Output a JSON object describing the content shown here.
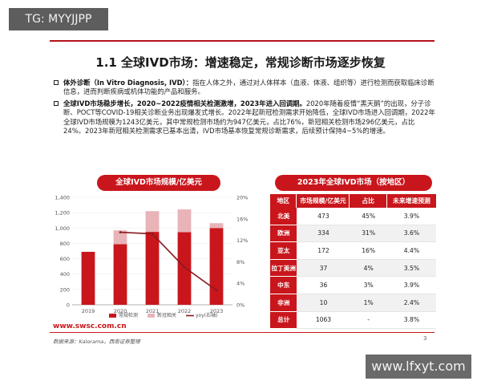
{
  "watermarks": {
    "top_left": "TG: MYYJJPP",
    "bottom_right": "www.lfxyt.com"
  },
  "header": {
    "title": "1.1 全球IVD市场：增速稳定，常规诊断市场逐步恢复"
  },
  "bullets": [
    {
      "lead": "体外诊断（In Vitro Diagnosis, IVD）：",
      "text": "指在人体之外，通过对人体样本（血液、体液、组织等）进行检测而获取临床诊断信息，进而判断疾病或机体功能的产品和服务。"
    },
    {
      "lead": "全球IVD市场稳步增长，2020~2022疫情相关检测激增，2023年进入回调期。",
      "text": "2020年随着疫情“黑天鹅”的出现，分子诊断、POCT等COVID-19相关诊断业务出现爆发式增长。2022年起新冠检测需求开始降低，全球IVD市场进入回调期，2022年全球IVD市场规模为1243亿美元，其中常规检测市场约为947亿美元，占比76%，新冠相关检测市场296亿美元，占比24%。2023年新冠相关检测需求已基本出清，IVD市场基本恢复常规诊断需求，后续预计保持4~5%的增速。"
    }
  ],
  "chart_header": "全球IVD市场规模/亿美元",
  "table_header": "2023年全球IVD市场（按地区）",
  "chart_data": {
    "type": "bar",
    "stacked": true,
    "categories": [
      "2019",
      "2020",
      "2021",
      "2022",
      "2023"
    ],
    "series": [
      {
        "name": "常规检测",
        "kind": "bar",
        "axis": "left",
        "color": "#c9161c",
        "values": [
          690,
          790,
          950,
          947,
          1000
        ]
      },
      {
        "name": "新冠相关",
        "kind": "bar",
        "axis": "left",
        "color": "#e8b4b8",
        "values": [
          0,
          180,
          270,
          296,
          63
        ]
      },
      {
        "name": "yoy(右轴)",
        "kind": "line",
        "axis": "right",
        "color": "#8a1a20",
        "values": [
          null,
          13.5,
          13.2,
          7.0,
          2.7
        ]
      }
    ],
    "ylim": [
      0,
      1400
    ],
    "yticks": [
      "0",
      "200",
      "400",
      "600",
      "800",
      "1,000",
      "1,200",
      "1,400"
    ],
    "y2lim": [
      0,
      20
    ],
    "y2ticks": [
      "0%",
      "4%",
      "8%",
      "12%",
      "16%",
      "20%"
    ],
    "legend_position": "bottom"
  },
  "table": {
    "columns": [
      "地区",
      "市场规模/亿美元",
      "占比",
      "未来增速预测"
    ],
    "rows": [
      [
        "北美",
        "473",
        "45%",
        "3.9%"
      ],
      [
        "欧洲",
        "334",
        "31%",
        "3.6%"
      ],
      [
        "亚太",
        "172",
        "16%",
        "4.4%"
      ],
      [
        "拉丁美洲",
        "37",
        "4%",
        "3.5%"
      ],
      [
        "中东",
        "36",
        "3%",
        "3.9%"
      ],
      [
        "非洲",
        "10",
        "1%",
        "2.4%"
      ],
      [
        "总计",
        "1063",
        "-",
        "3.8%"
      ]
    ]
  },
  "footer": {
    "url": "www.swsc.com.cn",
    "source": "数据来源：Kalorama，西南证券整理",
    "page": "3"
  }
}
